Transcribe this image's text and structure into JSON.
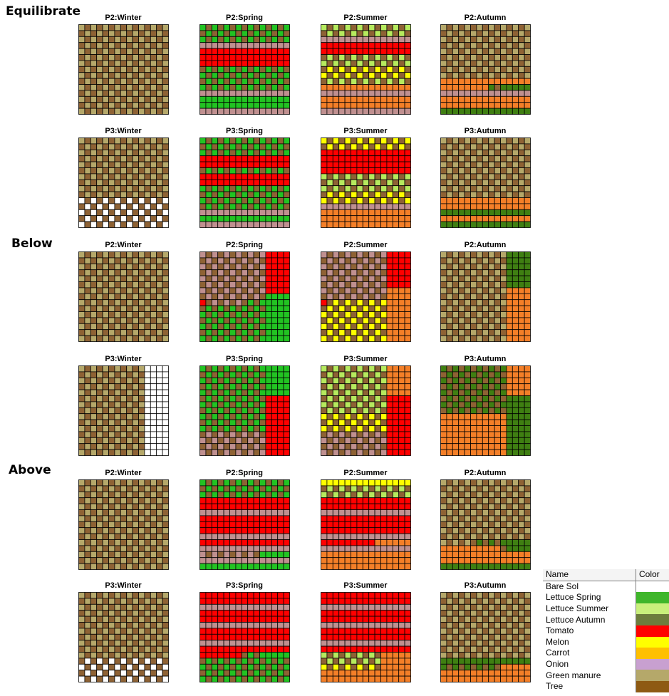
{
  "colors": {
    "B": "#ffffff",
    "S": "#22c322",
    "U": "#b6ea5e",
    "A": "#3f7f12",
    "T": "#ff0000",
    "M": "#ffff00",
    "C": "#f47f28",
    "O": "#c09090",
    "G": "#b5a86a",
    "R": "#8e6234"
  },
  "sections": [
    {
      "id": "equilibrate",
      "label": "Equilibrate",
      "rows": [
        {
          "panels": [
            {
              "title": "P2:Winter",
              "rows": [
                "cG",
                "cG",
                "cG",
                "cG",
                "cG",
                "cG",
                "cG",
                "cG",
                "cG",
                "cG",
                "cG",
                "cG",
                "cG",
                "cG",
                "cG"
              ]
            },
            {
              "title": "P2:Spring",
              "rows": [
                "cS",
                "cS",
                "cS",
                "uO",
                "uT",
                "uT",
                "uT",
                "cS",
                "cS",
                "cS",
                "cS",
                "uO",
                "uS",
                "uS",
                "uO"
              ]
            },
            {
              "title": "P2:Summer",
              "rows": [
                "cU",
                "cU",
                "uO",
                "uT",
                "uT",
                "cU",
                "cU",
                "cM",
                "cM",
                "cU",
                "uC",
                "uO",
                "uC",
                "uC",
                "uO"
              ]
            },
            {
              "title": "P2:Autumn",
              "rows": [
                "cG",
                "cG",
                "cG",
                "cG",
                "cG",
                "cG",
                "cG",
                "cG",
                "cG",
                "uC",
                "C8A7",
                "uO",
                "uC",
                "uC",
                "uA"
              ]
            }
          ]
        },
        {
          "panels": [
            {
              "title": "P3:Winter",
              "rows": [
                "cG",
                "cG",
                "cG",
                "cG",
                "cG",
                "cG",
                "cG",
                "cG",
                "cG",
                "cG",
                "cB",
                "cB",
                "cB",
                "cB",
                "cB"
              ]
            },
            {
              "title": "P3:Spring",
              "rows": [
                "cS",
                "cS",
                "cS",
                "uT",
                "uT",
                "cS",
                "uT",
                "uT",
                "cS",
                "cS",
                "cS",
                "cS",
                "uO",
                "uS",
                "uO"
              ]
            },
            {
              "title": "P3:Summer",
              "rows": [
                "cM",
                "cM",
                "uT",
                "uT",
                "uT",
                "uT",
                "cU",
                "cU",
                "cU",
                "cM",
                "cM",
                "uO",
                "uC",
                "uC",
                "uC"
              ]
            },
            {
              "title": "P3:Autumn",
              "rows": [
                "cG",
                "cG",
                "cG",
                "cG",
                "cG",
                "cG",
                "cG",
                "cG",
                "cG",
                "cG",
                "uC",
                "uC",
                "uA",
                "uC",
                "uA"
              ]
            }
          ]
        }
      ]
    },
    {
      "id": "below",
      "label": "Below",
      "rows": [
        {
          "panels": [
            {
              "title": "P2:Winter",
              "rows": [
                "cG",
                "cG",
                "cG",
                "cG",
                "cG",
                "cG",
                "cG",
                "cG",
                "cG",
                "cG",
                "cG",
                "cG",
                "cG",
                "cG",
                "cG"
              ]
            },
            {
              "title": "P2:Spring",
              "rows": [
                "O11T4",
                "O11T4",
                "O11T4",
                "O11T4",
                "O11T4",
                "O11T4",
                "O11T4",
                "O10S5",
                "T1O7S7",
                "S8S7",
                "S8S7",
                "S8S7",
                "S8S7",
                "S8S7",
                "S8S7"
              ]
            },
            {
              "title": "P2:Summer",
              "rows": [
                "O11T4",
                "O11T4",
                "O11T4",
                "O11T4",
                "O11T4",
                "O11T4",
                "O11C4",
                "O11C4",
                "T1M10C4",
                "M11C4",
                "M11C4",
                "M11C4",
                "M11C4",
                "M11C4",
                "M11C4"
              ]
            },
            {
              "title": "P2:Autumn",
              "rows": [
                "G11A4",
                "G11A4",
                "G11A4",
                "G11A4",
                "G11A4",
                "G11A4",
                "G11C4",
                "G11C4",
                "G11C4",
                "G11C4",
                "G11C4",
                "G11C4",
                "G11C4",
                "G11C4",
                "G11C4"
              ]
            }
          ]
        },
        {
          "panels": [
            {
              "title": "P3:Winter",
              "rows": [
                "G11B4",
                "G11B4",
                "G11B4",
                "G11B4",
                "G11B4",
                "G11B4",
                "G11B4",
                "G11B4",
                "G11B4",
                "G11B4",
                "G11B4",
                "G11B4",
                "G11B4",
                "G11B4",
                "G11B4"
              ]
            },
            {
              "title": "P3:Spring",
              "rows": [
                "S11S4",
                "S11S4",
                "S11S4",
                "S11S4",
                "S11S4",
                "S11T4",
                "S11T4",
                "S11T4",
                "S11T4",
                "S11T4",
                "S11T4",
                "O11T4",
                "O11T4",
                "O11T4",
                "O11T4"
              ]
            },
            {
              "title": "P3:Summer",
              "rows": [
                "U11C4",
                "U11C4",
                "U11C4",
                "U11C4",
                "U11C4",
                "U11T4",
                "U11T4",
                "U11T4",
                "M11T4",
                "M11T4",
                "M11T4",
                "O11T4",
                "O11T4",
                "O11T4",
                "O11T4"
              ]
            },
            {
              "title": "P3:Autumn",
              "rows": [
                "A11C4",
                "A11C4",
                "A11C4",
                "A11C4",
                "A11C4",
                "A11A4",
                "A11A4",
                "A11A4",
                "C11A4",
                "C11A4",
                "C11A4",
                "C11A4",
                "C11A4",
                "C11A4",
                "C11A4"
              ]
            }
          ]
        }
      ]
    },
    {
      "id": "above",
      "label": "Above",
      "rows": [
        {
          "panels": [
            {
              "title": "P2:Winter",
              "rows": [
                "cG",
                "cG",
                "cG",
                "cG",
                "cG",
                "cG",
                "cG",
                "cG",
                "cG",
                "cG",
                "cG",
                "cG",
                "cG",
                "cG",
                "cG"
              ]
            },
            {
              "title": "P2:Spring",
              "rows": [
                "cS",
                "cS",
                "cS",
                "uT",
                "uT",
                "uO",
                "uT",
                "uT",
                "uT",
                "uO",
                "uT",
                "uO",
                "O9S6",
                "uO",
                "uS"
              ]
            },
            {
              "title": "P2:Summer",
              "rows": [
                "uM",
                "cU",
                "cU",
                "uT",
                "uT",
                "uO",
                "uT",
                "uT",
                "uT",
                "uO",
                "T9C6",
                "uO",
                "uC",
                "uC",
                "uC"
              ]
            },
            {
              "title": "P2:Autumn",
              "rows": [
                "cG",
                "cG",
                "cG",
                "cG",
                "cG",
                "cG",
                "cG",
                "cG",
                "cG",
                "cG",
                "G5A10",
                "C10A5",
                "uC",
                "uC",
                "uA"
              ]
            }
          ]
        },
        {
          "panels": [
            {
              "title": "P3:Winter",
              "rows": [
                "cG",
                "cG",
                "cG",
                "cG",
                "cG",
                "cG",
                "cG",
                "cG",
                "cG",
                "cG",
                "cG",
                "cB",
                "cB",
                "cB",
                "cB"
              ]
            },
            {
              "title": "P3:Spring",
              "rows": [
                "uT",
                "uT",
                "uO",
                "uT",
                "uT",
                "uO",
                "uT",
                "uT",
                "uO",
                "uT",
                "T7S8",
                "cS",
                "cS",
                "cS",
                "cS"
              ]
            },
            {
              "title": "P3:Summer",
              "rows": [
                "uT",
                "uT",
                "uO",
                "uT",
                "uT",
                "uO",
                "uT",
                "uT",
                "uO",
                "uT",
                "U10C5",
                "U10C5",
                "M10C5",
                "uC",
                "uC"
              ]
            },
            {
              "title": "P3:Autumn",
              "rows": [
                "cG",
                "cG",
                "cG",
                "cG",
                "cG",
                "cG",
                "cG",
                "cG",
                "cG",
                "cG",
                "cG",
                "uA",
                "A10C5",
                "uC",
                "uC"
              ]
            }
          ]
        }
      ]
    }
  ],
  "legend": {
    "headers": {
      "name": "Name",
      "color": "Color"
    },
    "items": [
      {
        "name": "Bare Sol",
        "color": "#ffffff"
      },
      {
        "name": "Lettuce Spring",
        "color": "#3fb62b"
      },
      {
        "name": "Lettuce Summer",
        "color": "#c9f07c"
      },
      {
        "name": "Lettuce Autumn",
        "color": "#6d7d3d"
      },
      {
        "name": "Tomato",
        "color": "#ff0000"
      },
      {
        "name": "Melon",
        "color": "#ffff00"
      },
      {
        "name": "Carrot",
        "color": "#ffc000"
      },
      {
        "name": "Onion",
        "color": "#c8a0d0"
      },
      {
        "name": "Green manure",
        "color": "#b5a86a"
      },
      {
        "name": "Tree",
        "color": "#8e5a13"
      }
    ]
  }
}
